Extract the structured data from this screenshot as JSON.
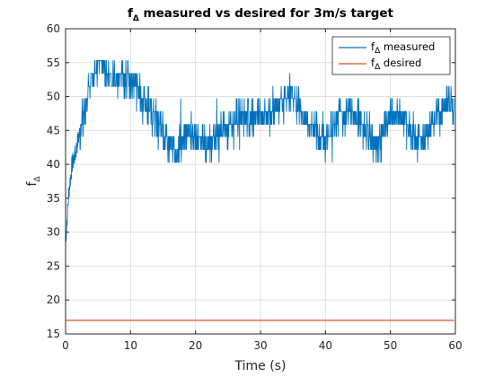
{
  "chart_data": {
    "type": "line",
    "title_main": "f",
    "title_sub": "Δ",
    "title_rest": " measured vs desired for 3m/s target",
    "xlabel": "Time (s)",
    "ylabel_main": "f",
    "ylabel_sub": "Δ",
    "xlim": [
      0,
      60
    ],
    "ylim": [
      15,
      60
    ],
    "xticks": [
      0,
      10,
      20,
      30,
      40,
      50,
      60
    ],
    "yticks": [
      15,
      20,
      25,
      30,
      35,
      40,
      45,
      50,
      55,
      60
    ],
    "grid": true,
    "legend_position": "top-right",
    "colors": {
      "measured": "#0072BD",
      "desired": "#D95319"
    },
    "series": [
      {
        "name_main": "f",
        "name_sub": "Δ",
        "name_rest": " measured",
        "key": "measured",
        "base_path": [
          [
            0,
            28.5
          ],
          [
            0.5,
            36
          ],
          [
            1,
            40
          ],
          [
            1.5,
            41.5
          ],
          [
            2,
            44
          ],
          [
            2.5,
            46
          ],
          [
            3,
            48
          ],
          [
            3.5,
            51
          ],
          [
            4,
            52
          ],
          [
            4.5,
            53.5
          ],
          [
            5,
            55
          ],
          [
            5.5,
            57
          ],
          [
            6,
            55
          ],
          [
            7,
            53
          ],
          [
            8,
            53
          ],
          [
            9,
            53
          ],
          [
            10,
            53
          ],
          [
            11,
            51
          ],
          [
            12,
            49
          ],
          [
            13,
            48
          ],
          [
            14,
            46
          ],
          [
            15,
            45
          ],
          [
            16,
            43
          ],
          [
            17,
            42
          ],
          [
            18,
            44
          ],
          [
            19,
            45
          ],
          [
            20,
            44
          ],
          [
            21,
            44
          ],
          [
            22,
            43
          ],
          [
            23,
            44
          ],
          [
            24,
            44
          ],
          [
            25,
            46
          ],
          [
            27,
            47
          ],
          [
            29,
            47
          ],
          [
            31,
            47
          ],
          [
            32,
            48
          ],
          [
            33,
            49
          ],
          [
            34,
            50
          ],
          [
            35,
            50
          ],
          [
            36,
            48
          ],
          [
            37,
            47
          ],
          [
            38,
            45
          ],
          [
            39,
            44
          ],
          [
            40,
            44
          ],
          [
            41,
            45
          ],
          [
            42,
            47
          ],
          [
            43,
            48
          ],
          [
            44,
            48
          ],
          [
            45,
            47
          ],
          [
            46,
            45
          ],
          [
            47,
            44
          ],
          [
            48,
            43
          ],
          [
            49,
            45
          ],
          [
            50,
            47
          ],
          [
            51,
            47
          ],
          [
            52,
            47
          ],
          [
            53,
            45
          ],
          [
            54,
            44
          ],
          [
            55,
            44
          ],
          [
            56,
            45
          ],
          [
            57,
            47
          ],
          [
            58,
            48
          ],
          [
            59,
            49
          ],
          [
            59.8,
            49
          ]
        ],
        "noise_levels": [
          40.3,
          42.2,
          44.1,
          45.9,
          47.8,
          49.7,
          51.5,
          53.4,
          55.3
        ]
      },
      {
        "name_main": "f",
        "name_sub": "Δ",
        "name_rest": " desired",
        "key": "desired",
        "x": [
          0,
          59.8
        ],
        "y": [
          17,
          17
        ]
      }
    ]
  }
}
